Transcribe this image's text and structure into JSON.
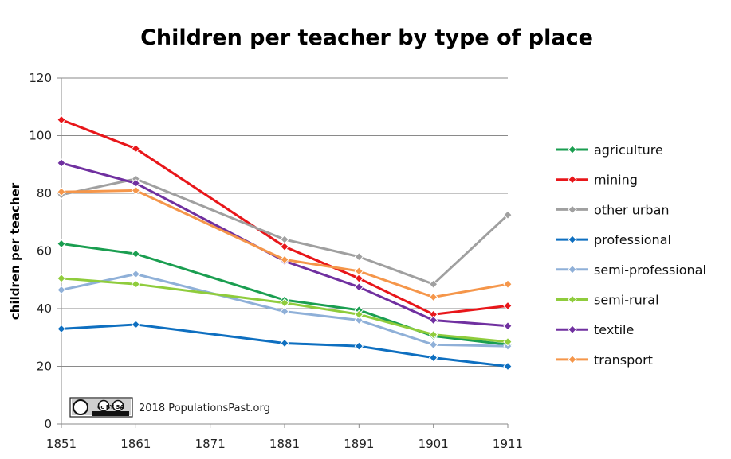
{
  "chart_data": {
    "type": "line",
    "title": "Children per teacher by type of place",
    "xlabel": "",
    "ylabel": "children per teacher",
    "xlim": [
      1851,
      1911
    ],
    "ylim": [
      0,
      120
    ],
    "x_ticks": [
      1851,
      1861,
      1871,
      1881,
      1891,
      1901,
      1911
    ],
    "y_ticks": [
      0,
      20,
      40,
      60,
      80,
      100,
      120
    ],
    "grid": true,
    "legend_position": "right",
    "x": [
      1851,
      1861,
      1881,
      1891,
      1901,
      1911
    ],
    "series": [
      {
        "name": "agriculture",
        "color": "#1a9e50",
        "values": [
          62.5,
          59,
          43,
          39.5,
          30.5,
          27.5
        ]
      },
      {
        "name": "mining",
        "color": "#e8161a",
        "values": [
          105.5,
          95.5,
          61.5,
          50.5,
          38,
          41
        ]
      },
      {
        "name": "other urban",
        "color": "#a0a0a0",
        "values": [
          79.5,
          85,
          64,
          58,
          48.5,
          72.5
        ]
      },
      {
        "name": "professional",
        "color": "#0e6fc0",
        "values": [
          33,
          34.5,
          28,
          27,
          23,
          20
        ]
      },
      {
        "name": "semi-professional",
        "color": "#8fb0d8",
        "values": [
          46.5,
          52,
          39,
          36,
          27.5,
          27
        ]
      },
      {
        "name": "semi-rural",
        "color": "#8fcc3c",
        "values": [
          50.5,
          48.5,
          42,
          38,
          31,
          28.5
        ]
      },
      {
        "name": "textile",
        "color": "#7030a0",
        "values": [
          90.5,
          83.5,
          56.5,
          47.5,
          36,
          34
        ]
      },
      {
        "name": "transport",
        "color": "#f5964a",
        "values": [
          80.5,
          81,
          57,
          53,
          44,
          48.5
        ]
      }
    ]
  },
  "credit": {
    "badge_text": "cc BY SA",
    "text": "2018 PopulationsPast.org"
  }
}
